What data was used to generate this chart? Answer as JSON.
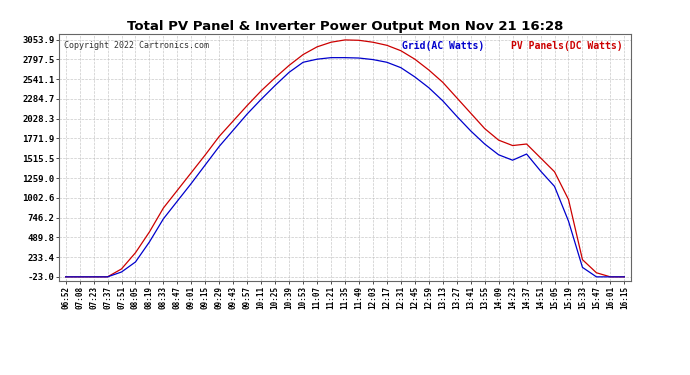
{
  "title": "Total PV Panel & Inverter Power Output Mon Nov 21 16:28",
  "copyright": "Copyright 2022 Cartronics.com",
  "legend_grid": "Grid(AC Watts)",
  "legend_pv": "PV Panels(DC Watts)",
  "grid_color": "#0000cc",
  "pv_color": "#cc0000",
  "background_color": "#ffffff",
  "plot_bg_color": "#ffffff",
  "grid_line_color": "#bbbbbb",
  "yticks": [
    -23.0,
    233.4,
    489.8,
    746.2,
    1002.6,
    1259.0,
    1515.5,
    1771.9,
    2028.3,
    2284.7,
    2541.1,
    2797.5,
    3053.9
  ],
  "ymin": -23.0,
  "ymax": 3053.9,
  "xtick_labels": [
    "06:52",
    "07:08",
    "07:23",
    "07:37",
    "07:51",
    "08:05",
    "08:19",
    "08:33",
    "08:47",
    "09:01",
    "09:15",
    "09:29",
    "09:43",
    "09:57",
    "10:11",
    "10:25",
    "10:39",
    "10:53",
    "11:07",
    "11:21",
    "11:35",
    "11:49",
    "12:03",
    "12:17",
    "12:31",
    "12:45",
    "12:59",
    "13:13",
    "13:27",
    "13:41",
    "13:55",
    "14:09",
    "14:23",
    "14:37",
    "14:51",
    "15:05",
    "15:19",
    "15:33",
    "15:47",
    "16:01",
    "16:15"
  ],
  "pv_y": [
    -23,
    -23,
    -23,
    -23,
    80,
    290,
    560,
    870,
    1100,
    1330,
    1560,
    1800,
    2000,
    2200,
    2390,
    2560,
    2720,
    2860,
    2960,
    3020,
    3050,
    3045,
    3020,
    2980,
    2910,
    2800,
    2660,
    2500,
    2300,
    2100,
    1900,
    1750,
    1680,
    1700,
    1520,
    1340,
    980,
    200,
    30,
    -23,
    -23
  ],
  "grid_y": [
    -23,
    -23,
    -23,
    -23,
    40,
    170,
    430,
    730,
    960,
    1190,
    1430,
    1670,
    1880,
    2090,
    2280,
    2460,
    2630,
    2760,
    2800,
    2820,
    2820,
    2815,
    2795,
    2760,
    2690,
    2570,
    2430,
    2260,
    2060,
    1870,
    1700,
    1560,
    1490,
    1570,
    1350,
    1150,
    700,
    100,
    -23,
    -23,
    -23
  ]
}
